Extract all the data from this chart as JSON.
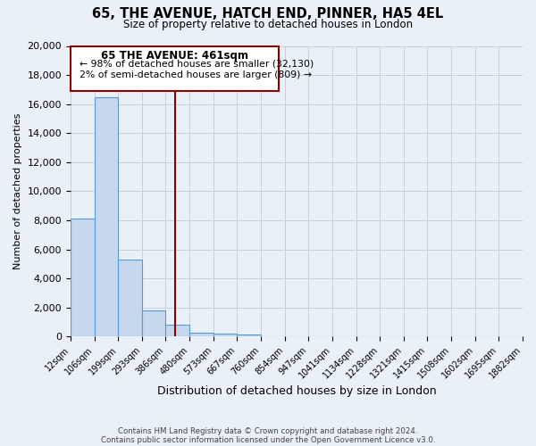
{
  "title": "65, THE AVENUE, HATCH END, PINNER, HA5 4EL",
  "subtitle": "Size of property relative to detached houses in London",
  "xlabel": "Distribution of detached houses by size in London",
  "ylabel": "Number of detached properties",
  "bar_color": "#c5d8ed",
  "bar_edge_color": "#5b9bd5",
  "bar_values": [
    8100,
    16500,
    5300,
    1800,
    800,
    300,
    200,
    150,
    0,
    0,
    0,
    0,
    0,
    0,
    0,
    0,
    0,
    0,
    0
  ],
  "x_labels": [
    "12sqm",
    "106sqm",
    "199sqm",
    "293sqm",
    "386sqm",
    "480sqm",
    "573sqm",
    "667sqm",
    "760sqm",
    "854sqm",
    "947sqm",
    "1041sqm",
    "1134sqm",
    "1228sqm",
    "1321sqm",
    "1415sqm",
    "1508sqm",
    "1602sqm",
    "1695sqm",
    "1882sqm"
  ],
  "ylim": [
    0,
    20000
  ],
  "yticks": [
    0,
    2000,
    4000,
    6000,
    8000,
    10000,
    12000,
    14000,
    16000,
    18000,
    20000
  ],
  "vline_x": 4.4,
  "vline_color": "#8b0000",
  "annotation_title": "65 THE AVENUE: 461sqm",
  "annotation_line1": "← 98% of detached houses are smaller (32,130)",
  "annotation_line2": "2% of semi-detached houses are larger (809) →",
  "footer1": "Contains HM Land Registry data © Crown copyright and database right 2024.",
  "footer2": "Contains public sector information licensed under the Open Government Licence v3.0.",
  "bg_color": "#eaf0f8",
  "plot_bg_color": "#eaf0f8",
  "grid_color": "#c8d0dc"
}
